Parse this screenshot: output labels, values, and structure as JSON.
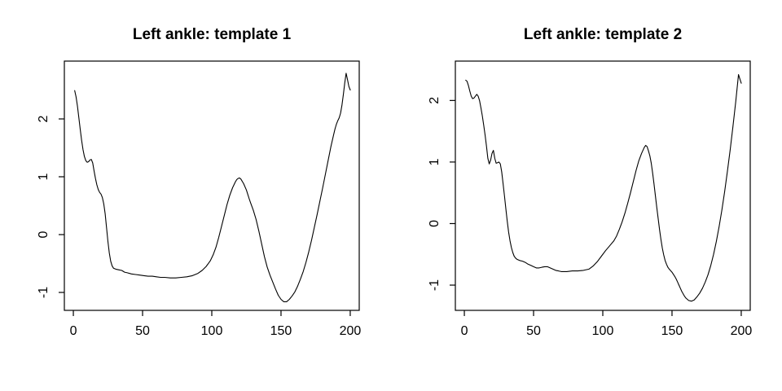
{
  "page": {
    "background": "#ffffff",
    "foreground": "#000000"
  },
  "chart_data": [
    {
      "type": "line",
      "title": "Left ankle: template 1",
      "xlabel": "",
      "ylabel": "",
      "x_ticks": [
        0,
        50,
        100,
        150,
        200
      ],
      "y_ticks": [
        -1,
        0,
        1,
        2
      ],
      "xlim": [
        -6.5,
        206.5
      ],
      "ylim": [
        -1.31,
        3.0
      ],
      "grid": false,
      "legend": null,
      "line_color": "#000000",
      "points": [
        [
          1,
          2.49
        ],
        [
          2,
          2.38
        ],
        [
          3,
          2.22
        ],
        [
          4,
          2.02
        ],
        [
          5,
          1.82
        ],
        [
          6,
          1.63
        ],
        [
          7,
          1.47
        ],
        [
          8,
          1.35
        ],
        [
          9,
          1.28
        ],
        [
          10,
          1.25
        ],
        [
          11,
          1.26
        ],
        [
          12,
          1.29
        ],
        [
          13,
          1.3
        ],
        [
          14,
          1.24
        ],
        [
          15,
          1.1
        ],
        [
          16,
          0.97
        ],
        [
          17,
          0.86
        ],
        [
          18,
          0.78
        ],
        [
          19,
          0.73
        ],
        [
          20,
          0.7
        ],
        [
          21,
          0.64
        ],
        [
          22,
          0.53
        ],
        [
          23,
          0.36
        ],
        [
          24,
          0.12
        ],
        [
          25,
          -0.12
        ],
        [
          26,
          -0.32
        ],
        [
          27,
          -0.46
        ],
        [
          28,
          -0.54
        ],
        [
          29,
          -0.58
        ],
        [
          31,
          -0.6
        ],
        [
          33,
          -0.61
        ],
        [
          35,
          -0.62
        ],
        [
          37,
          -0.65
        ],
        [
          39,
          -0.66
        ],
        [
          42,
          -0.68
        ],
        [
          45,
          -0.69
        ],
        [
          48,
          -0.7
        ],
        [
          51,
          -0.71
        ],
        [
          54,
          -0.72
        ],
        [
          57,
          -0.72
        ],
        [
          60,
          -0.73
        ],
        [
          63,
          -0.74
        ],
        [
          66,
          -0.74
        ],
        [
          70,
          -0.75
        ],
        [
          74,
          -0.75
        ],
        [
          78,
          -0.74
        ],
        [
          82,
          -0.73
        ],
        [
          86,
          -0.71
        ],
        [
          90,
          -0.67
        ],
        [
          93,
          -0.62
        ],
        [
          96,
          -0.55
        ],
        [
          99,
          -0.45
        ],
        [
          101,
          -0.35
        ],
        [
          103,
          -0.22
        ],
        [
          105,
          -0.05
        ],
        [
          107,
          0.14
        ],
        [
          109,
          0.33
        ],
        [
          111,
          0.52
        ],
        [
          113,
          0.68
        ],
        [
          115,
          0.81
        ],
        [
          117,
          0.91
        ],
        [
          118,
          0.95
        ],
        [
          119,
          0.97
        ],
        [
          120,
          0.98
        ],
        [
          121,
          0.96
        ],
        [
          123,
          0.88
        ],
        [
          125,
          0.77
        ],
        [
          127,
          0.62
        ],
        [
          128,
          0.55
        ],
        [
          130,
          0.42
        ],
        [
          132,
          0.26
        ],
        [
          134,
          0.06
        ],
        [
          136,
          -0.16
        ],
        [
          138,
          -0.38
        ],
        [
          140,
          -0.56
        ],
        [
          142,
          -0.7
        ],
        [
          144,
          -0.82
        ],
        [
          146,
          -0.94
        ],
        [
          148,
          -1.05
        ],
        [
          150,
          -1.12
        ],
        [
          152,
          -1.16
        ],
        [
          154,
          -1.16
        ],
        [
          156,
          -1.12
        ],
        [
          158,
          -1.06
        ],
        [
          160,
          -0.99
        ],
        [
          162,
          -0.89
        ],
        [
          164,
          -0.77
        ],
        [
          166,
          -0.64
        ],
        [
          168,
          -0.48
        ],
        [
          170,
          -0.3
        ],
        [
          172,
          -0.1
        ],
        [
          174,
          0.12
        ],
        [
          176,
          0.34
        ],
        [
          178,
          0.57
        ],
        [
          180,
          0.8
        ],
        [
          182,
          1.04
        ],
        [
          184,
          1.28
        ],
        [
          186,
          1.52
        ],
        [
          188,
          1.73
        ],
        [
          189,
          1.83
        ],
        [
          190,
          1.91
        ],
        [
          191,
          1.97
        ],
        [
          192,
          2.02
        ],
        [
          193,
          2.1
        ],
        [
          194,
          2.24
        ],
        [
          195,
          2.42
        ],
        [
          196,
          2.62
        ],
        [
          197,
          2.79
        ],
        [
          198,
          2.68
        ],
        [
          199,
          2.56
        ],
        [
          200,
          2.5
        ]
      ]
    },
    {
      "type": "line",
      "title": "Left ankle: template 2",
      "xlabel": "",
      "ylabel": "",
      "x_ticks": [
        0,
        50,
        100,
        150,
        200
      ],
      "y_ticks": [
        -1,
        0,
        1,
        2
      ],
      "xlim": [
        -6.5,
        206.5
      ],
      "ylim": [
        -1.41,
        2.64
      ],
      "grid": false,
      "legend": null,
      "line_color": "#000000",
      "points": [
        [
          1,
          2.33
        ],
        [
          2,
          2.31
        ],
        [
          3,
          2.24
        ],
        [
          4,
          2.15
        ],
        [
          5,
          2.07
        ],
        [
          6,
          2.03
        ],
        [
          7,
          2.04
        ],
        [
          8,
          2.07
        ],
        [
          9,
          2.1
        ],
        [
          10,
          2.07
        ],
        [
          11,
          2.0
        ],
        [
          12,
          1.88
        ],
        [
          13,
          1.75
        ],
        [
          14,
          1.6
        ],
        [
          15,
          1.44
        ],
        [
          16,
          1.26
        ],
        [
          17,
          1.06
        ],
        [
          18,
          0.97
        ],
        [
          19,
          1.03
        ],
        [
          20,
          1.14
        ],
        [
          21,
          1.19
        ],
        [
          22,
          1.06
        ],
        [
          23,
          0.98
        ],
        [
          24,
          0.99
        ],
        [
          25,
          1.0
        ],
        [
          26,
          0.97
        ],
        [
          27,
          0.84
        ],
        [
          28,
          0.65
        ],
        [
          29,
          0.45
        ],
        [
          30,
          0.24
        ],
        [
          31,
          0.04
        ],
        [
          32,
          -0.14
        ],
        [
          33,
          -0.28
        ],
        [
          34,
          -0.39
        ],
        [
          35,
          -0.47
        ],
        [
          36,
          -0.53
        ],
        [
          37,
          -0.56
        ],
        [
          38,
          -0.58
        ],
        [
          40,
          -0.6
        ],
        [
          42,
          -0.61
        ],
        [
          44,
          -0.63
        ],
        [
          46,
          -0.66
        ],
        [
          48,
          -0.68
        ],
        [
          50,
          -0.7
        ],
        [
          52,
          -0.72
        ],
        [
          54,
          -0.72
        ],
        [
          56,
          -0.71
        ],
        [
          58,
          -0.7
        ],
        [
          60,
          -0.7
        ],
        [
          62,
          -0.72
        ],
        [
          64,
          -0.74
        ],
        [
          66,
          -0.76
        ],
        [
          68,
          -0.77
        ],
        [
          70,
          -0.78
        ],
        [
          74,
          -0.78
        ],
        [
          78,
          -0.77
        ],
        [
          82,
          -0.77
        ],
        [
          86,
          -0.76
        ],
        [
          90,
          -0.74
        ],
        [
          93,
          -0.69
        ],
        [
          96,
          -0.62
        ],
        [
          99,
          -0.53
        ],
        [
          102,
          -0.44
        ],
        [
          105,
          -0.36
        ],
        [
          108,
          -0.28
        ],
        [
          110,
          -0.2
        ],
        [
          112,
          -0.09
        ],
        [
          114,
          0.03
        ],
        [
          116,
          0.17
        ],
        [
          118,
          0.33
        ],
        [
          120,
          0.5
        ],
        [
          122,
          0.68
        ],
        [
          124,
          0.86
        ],
        [
          126,
          1.02
        ],
        [
          128,
          1.14
        ],
        [
          130,
          1.24
        ],
        [
          131,
          1.27
        ],
        [
          132,
          1.25
        ],
        [
          133,
          1.18
        ],
        [
          134,
          1.1
        ],
        [
          135,
          0.98
        ],
        [
          136,
          0.82
        ],
        [
          137,
          0.64
        ],
        [
          138,
          0.45
        ],
        [
          139,
          0.26
        ],
        [
          140,
          0.08
        ],
        [
          141,
          -0.1
        ],
        [
          142,
          -0.26
        ],
        [
          143,
          -0.4
        ],
        [
          144,
          -0.51
        ],
        [
          145,
          -0.6
        ],
        [
          146,
          -0.66
        ],
        [
          147,
          -0.71
        ],
        [
          148,
          -0.74
        ],
        [
          150,
          -0.79
        ],
        [
          152,
          -0.86
        ],
        [
          153,
          -0.9
        ],
        [
          154,
          -0.95
        ],
        [
          155,
          -1.0
        ],
        [
          156,
          -1.05
        ],
        [
          157,
          -1.1
        ],
        [
          158,
          -1.14
        ],
        [
          159,
          -1.18
        ],
        [
          160,
          -1.21
        ],
        [
          161,
          -1.23
        ],
        [
          162,
          -1.25
        ],
        [
          164,
          -1.26
        ],
        [
          166,
          -1.24
        ],
        [
          168,
          -1.19
        ],
        [
          170,
          -1.13
        ],
        [
          172,
          -1.05
        ],
        [
          174,
          -0.95
        ],
        [
          176,
          -0.83
        ],
        [
          178,
          -0.68
        ],
        [
          180,
          -0.5
        ],
        [
          182,
          -0.29
        ],
        [
          184,
          -0.05
        ],
        [
          186,
          0.22
        ],
        [
          188,
          0.52
        ],
        [
          190,
          0.85
        ],
        [
          192,
          1.2
        ],
        [
          194,
          1.58
        ],
        [
          195,
          1.78
        ],
        [
          196,
          1.98
        ],
        [
          197,
          2.2
        ],
        [
          198,
          2.42
        ],
        [
          199,
          2.35
        ],
        [
          200,
          2.28
        ]
      ]
    }
  ]
}
